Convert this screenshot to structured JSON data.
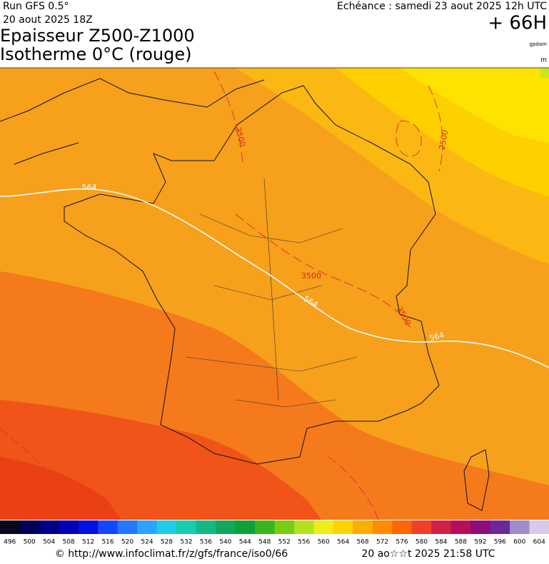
{
  "header": {
    "run": "Run GFS 0.5°",
    "run_date": "20 aout 2025 18Z",
    "title_line1": "Epaisseur Z500-Z1000",
    "title_line2": "Isotherme 0°C (rouge)",
    "valid": "Echéance : samedi 23 aout 2025 12h UTC",
    "lead": "+ 66H",
    "unit_top": "gpdam",
    "unit_bottom": "m"
  },
  "map": {
    "contour_labels": [
      "564",
      "564",
      "564",
      "3500",
      "3500",
      "3500",
      "2500"
    ]
  },
  "legend": {
    "levels": [
      496,
      500,
      504,
      508,
      512,
      516,
      520,
      524,
      528,
      532,
      536,
      540,
      544,
      548,
      552,
      556,
      560,
      564,
      568,
      572,
      576,
      580,
      584,
      588,
      592,
      596,
      600,
      604
    ],
    "colors": [
      "#08081e",
      "#000058",
      "#000084",
      "#0000b4",
      "#0010e0",
      "#1448ff",
      "#2478ff",
      "#2ca4ff",
      "#20cce8",
      "#18ccb0",
      "#14b886",
      "#10a85c",
      "#10a038",
      "#3cb41e",
      "#78cc14",
      "#b4e01e",
      "#ecec1e",
      "#ffd200",
      "#ffae00",
      "#ff8c00",
      "#ff6600",
      "#f0402a",
      "#d22046",
      "#b4105a",
      "#8c0c78",
      "#6c2896",
      "#a08cc8",
      "#d6cce8"
    ]
  },
  "footer": {
    "url": "© http://www.infoclimat.fr/z/gfs/france/iso0/66",
    "timestamp": "20 ao☆☆t 2025 21:58 UTC"
  }
}
